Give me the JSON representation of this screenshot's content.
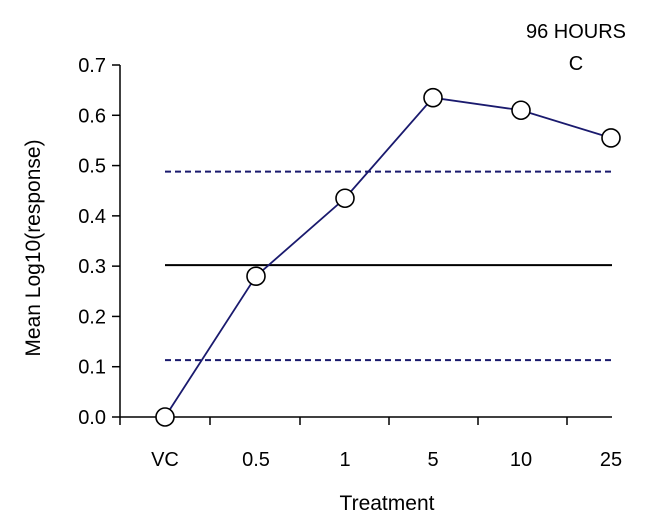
{
  "chart_data": {
    "type": "line",
    "title": "96 HOURS",
    "subtitle": "C",
    "xlabel": "Treatment",
    "ylabel": "Mean Log10(response)",
    "categories": [
      "VC",
      "0.5",
      "1",
      "5",
      "10",
      "25"
    ],
    "ylim": [
      0.0,
      0.7
    ],
    "yticks": [
      "0.0",
      "0.1",
      "0.2",
      "0.3",
      "0.4",
      "0.5",
      "0.6",
      "0.7"
    ],
    "series": [
      {
        "values": [
          0.0,
          0.28,
          0.435,
          0.635,
          0.61,
          0.555
        ]
      }
    ],
    "reference_lines": [
      {
        "style": "solid",
        "y": 0.302
      },
      {
        "style": "dashed",
        "y": 0.488
      },
      {
        "style": "dashed",
        "y": 0.113
      }
    ],
    "grid": false,
    "colors": {
      "series": "#1a1a6e",
      "reference_solid": "#000000",
      "reference_dashed": "#1a1a6e",
      "marker_fill": "#ffffff"
    }
  }
}
